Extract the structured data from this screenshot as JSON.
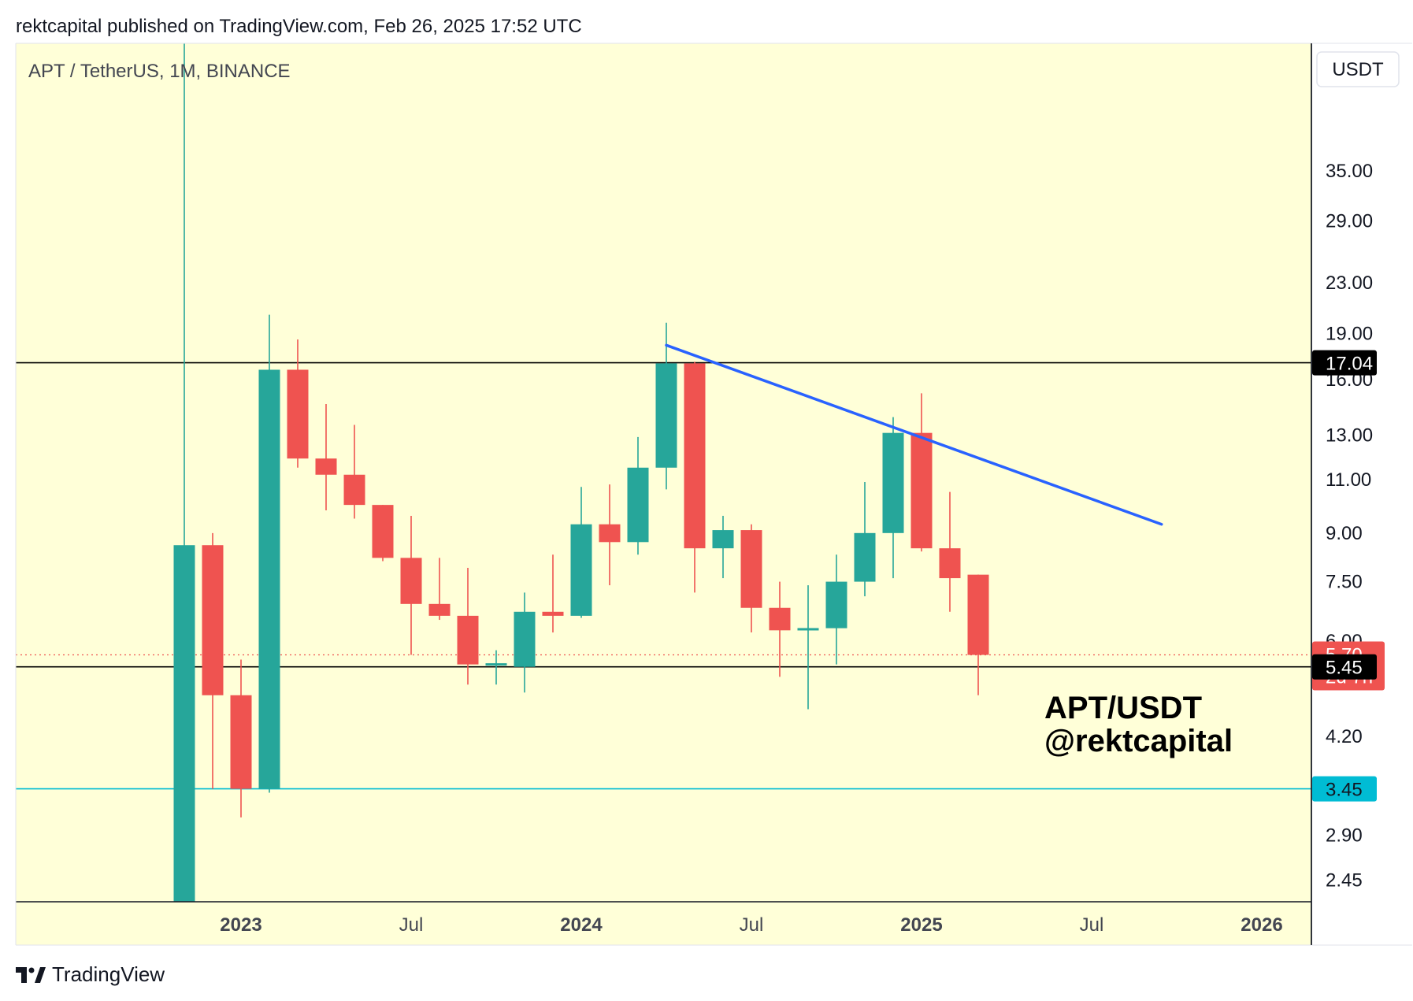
{
  "header": {
    "text": "rektcapital published on TradingView.com, Feb 26, 2025 17:52 UTC"
  },
  "footer": {
    "brand": "TradingView"
  },
  "chart_data": {
    "type": "candlestick",
    "symbol_label": "APT / TetherUS, 1M, BINANCE",
    "currency": "USDT",
    "scale": "log",
    "background_color": "#ffffd8",
    "up_color": "#26a69a",
    "down_color": "#ef5350",
    "ylim": [
      2.32,
      50
    ],
    "y_ticks": [
      "2.45",
      "2.90",
      "3.45",
      "4.20",
      "5.45",
      "6.00",
      "7.50",
      "9.00",
      "11.00",
      "13.00",
      "16.00",
      "19.00",
      "23.00",
      "29.00",
      "35.00"
    ],
    "x_ticks": [
      {
        "label": "2023",
        "bold": true,
        "month": 2.0
      },
      {
        "label": "Jul",
        "bold": false,
        "month": 8.0
      },
      {
        "label": "2024",
        "bold": true,
        "month": 14.0
      },
      {
        "label": "Jul",
        "bold": false,
        "month": 20.0
      },
      {
        "label": "2025",
        "bold": true,
        "month": 26.0
      },
      {
        "label": "Jul",
        "bold": false,
        "month": 32.0
      },
      {
        "label": "2026",
        "bold": true,
        "month": 38.0
      }
    ],
    "candles": [
      {
        "date": "2022-10",
        "o": 1.0,
        "h": 100,
        "l": 1.0,
        "c": 8.6
      },
      {
        "date": "2022-11",
        "o": 8.6,
        "h": 9.0,
        "l": 3.45,
        "c": 4.9
      },
      {
        "date": "2022-12",
        "o": 4.9,
        "h": 5.6,
        "l": 3.1,
        "c": 3.45
      },
      {
        "date": "2023-01",
        "o": 3.45,
        "h": 20.4,
        "l": 3.4,
        "c": 16.6
      },
      {
        "date": "2023-02",
        "o": 16.6,
        "h": 18.6,
        "l": 11.5,
        "c": 11.9
      },
      {
        "date": "2023-03",
        "o": 11.9,
        "h": 14.6,
        "l": 9.8,
        "c": 11.2
      },
      {
        "date": "2023-04",
        "o": 11.2,
        "h": 13.5,
        "l": 9.5,
        "c": 10.0
      },
      {
        "date": "2023-05",
        "o": 10.0,
        "h": 10.0,
        "l": 8.1,
        "c": 8.2
      },
      {
        "date": "2023-06",
        "o": 8.2,
        "h": 9.6,
        "l": 5.7,
        "c": 6.9
      },
      {
        "date": "2023-07",
        "o": 6.9,
        "h": 8.2,
        "l": 6.5,
        "c": 6.6
      },
      {
        "date": "2023-08",
        "o": 6.6,
        "h": 7.9,
        "l": 5.1,
        "c": 5.5
      },
      {
        "date": "2023-09",
        "o": 5.5,
        "h": 5.8,
        "l": 5.1,
        "c": 5.5
      },
      {
        "date": "2023-10",
        "o": 5.45,
        "h": 7.2,
        "l": 4.95,
        "c": 6.7
      },
      {
        "date": "2023-11",
        "o": 6.7,
        "h": 8.3,
        "l": 6.2,
        "c": 6.6
      },
      {
        "date": "2023-12",
        "o": 6.6,
        "h": 10.7,
        "l": 6.55,
        "c": 9.3
      },
      {
        "date": "2024-01",
        "o": 9.3,
        "h": 10.8,
        "l": 7.4,
        "c": 8.7
      },
      {
        "date": "2024-02",
        "o": 8.7,
        "h": 12.9,
        "l": 8.3,
        "c": 11.5
      },
      {
        "date": "2024-03",
        "o": 11.5,
        "h": 19.8,
        "l": 10.6,
        "c": 17.0
      },
      {
        "date": "2024-04",
        "o": 17.0,
        "h": 17.1,
        "l": 7.2,
        "c": 8.5
      },
      {
        "date": "2024-05",
        "o": 8.5,
        "h": 9.6,
        "l": 7.6,
        "c": 9.1
      },
      {
        "date": "2024-06",
        "o": 9.1,
        "h": 9.3,
        "l": 6.2,
        "c": 6.8
      },
      {
        "date": "2024-07",
        "o": 6.8,
        "h": 7.5,
        "l": 5.25,
        "c": 6.25
      },
      {
        "date": "2024-08",
        "o": 6.25,
        "h": 7.4,
        "l": 4.65,
        "c": 6.3
      },
      {
        "date": "2024-09",
        "o": 6.3,
        "h": 8.3,
        "l": 5.5,
        "c": 7.5
      },
      {
        "date": "2024-10",
        "o": 7.5,
        "h": 10.9,
        "l": 7.1,
        "c": 9.0
      },
      {
        "date": "2024-11",
        "o": 9.0,
        "h": 13.9,
        "l": 7.6,
        "c": 13.1
      },
      {
        "date": "2024-12",
        "o": 13.1,
        "h": 15.2,
        "l": 8.4,
        "c": 8.5
      },
      {
        "date": "2025-01",
        "o": 8.5,
        "h": 10.5,
        "l": 6.7,
        "c": 7.6
      },
      {
        "date": "2025-02",
        "o": 7.7,
        "h": 7.7,
        "l": 4.9,
        "c": 5.7
      }
    ],
    "horizontal_lines": [
      {
        "value": 17.04,
        "color": "#000000",
        "label": "17.04",
        "label_bg": "#000000",
        "label_color": "#ffffff"
      },
      {
        "value": 5.45,
        "color": "#000000",
        "label": "5.45",
        "label_bg": "#000000",
        "label_color": "#ffffff"
      },
      {
        "value": 3.45,
        "color": "#00bcd4",
        "label": "3.45",
        "label_bg": "#00bcd4",
        "label_color": "#131722"
      }
    ],
    "current_price": {
      "value": 5.7,
      "label": "5.70",
      "countdown": "2d 7h",
      "color": "#ef5350"
    },
    "trendline": {
      "color": "#2962ff",
      "start": {
        "date": "2024-03",
        "value": 18.2
      },
      "end": {
        "date": "2025-08-15",
        "value": 9.3
      }
    },
    "annotation": {
      "line1": "APT/USDT",
      "line2": "@rektcapital"
    }
  }
}
